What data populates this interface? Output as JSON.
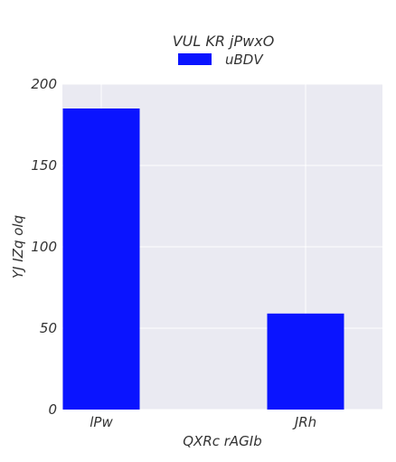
{
  "chart_data": {
    "type": "bar",
    "title": "VUL  KR jPwxO",
    "xlabel": "QXRc rAGIb",
    "ylabel": "YJ IZq olq",
    "categories": [
      "lPw",
      "JRh"
    ],
    "series": [
      {
        "name": "uBDV",
        "values": [
          185,
          59
        ],
        "color": "#0a14ff"
      }
    ],
    "ylim": [
      0,
      200
    ],
    "yticks": [
      0,
      50,
      100,
      150,
      200
    ],
    "grid": true,
    "legend": "top-center",
    "colors": {
      "plot_background": "#eaeaf2",
      "grid": "#ffffff",
      "bar": "#0a14ff"
    }
  }
}
